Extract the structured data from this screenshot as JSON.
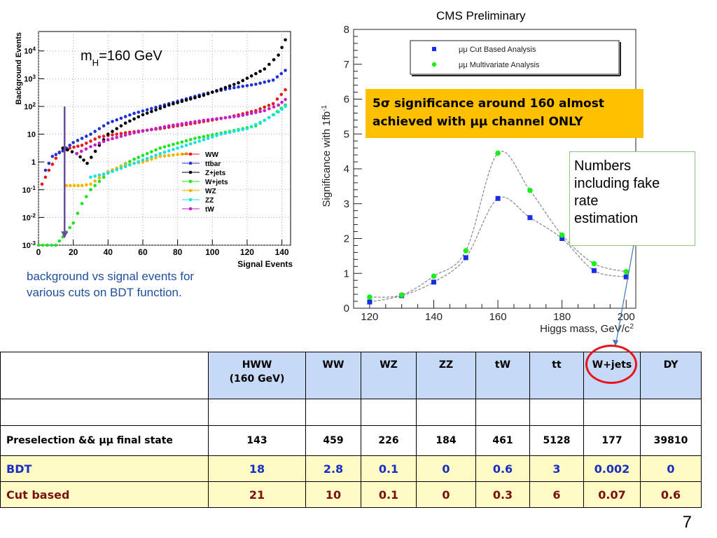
{
  "left_chart_data": {
    "type": "scatter",
    "annotation_main": "m",
    "annotation_sub": "H",
    "annotation_rest": "=160 GeV",
    "xlabel": "Signal Events",
    "ylabel": "Background Events",
    "xlim": [
      0,
      145
    ],
    "ylim_log10": [
      -3,
      4.7
    ],
    "xticks": [
      "0",
      "20",
      "40",
      "60",
      "80",
      "100",
      "120",
      "140"
    ],
    "yticks": [
      {
        "exp": -3,
        "base": "10",
        "sup": "-3"
      },
      {
        "exp": -2,
        "base": "10",
        "sup": "-2"
      },
      {
        "exp": -1,
        "base": "10",
        "sup": "-1"
      },
      {
        "exp": 0,
        "base": "1",
        "sup": ""
      },
      {
        "exp": 1,
        "base": "10",
        "sup": ""
      },
      {
        "exp": 2,
        "base": "10",
        "sup": "2"
      },
      {
        "exp": 3,
        "base": "10",
        "sup": "3"
      },
      {
        "exp": 4,
        "base": "10",
        "sup": "4"
      }
    ],
    "cut_arrow_x": 15,
    "series": [
      {
        "name": "WW",
        "color": "#e41a1c",
        "points": [
          [
            2,
            -0.8
          ],
          [
            6,
            -0.3
          ],
          [
            12,
            0.35
          ],
          [
            18,
            0.5
          ],
          [
            25,
            0.6
          ],
          [
            35,
            0.9
          ],
          [
            50,
            1.05
          ],
          [
            70,
            1.2
          ],
          [
            90,
            1.4
          ],
          [
            110,
            1.62
          ],
          [
            125,
            1.85
          ],
          [
            135,
            2.1
          ],
          [
            142,
            2.6
          ]
        ]
      },
      {
        "name": "ttbar",
        "color": "#1f32d6",
        "points": [
          [
            4,
            -0.3
          ],
          [
            8,
            0.2
          ],
          [
            14,
            0.4
          ],
          [
            20,
            0.7
          ],
          [
            30,
            1.0
          ],
          [
            40,
            1.4
          ],
          [
            55,
            1.75
          ],
          [
            75,
            2.1
          ],
          [
            95,
            2.45
          ],
          [
            110,
            2.65
          ],
          [
            125,
            2.8
          ],
          [
            135,
            2.95
          ],
          [
            142,
            3.3
          ]
        ]
      },
      {
        "name": "Z+jets",
        "color": "#000000",
        "points": [
          [
            14,
            0.5
          ],
          [
            22,
            0.3
          ],
          [
            28,
            -0.05
          ],
          [
            35,
            0.6
          ],
          [
            40,
            1.0
          ],
          [
            50,
            1.4
          ],
          [
            60,
            1.7
          ],
          [
            75,
            2.05
          ],
          [
            95,
            2.4
          ],
          [
            115,
            2.85
          ],
          [
            130,
            3.35
          ],
          [
            138,
            3.85
          ],
          [
            142,
            4.4
          ]
        ]
      },
      {
        "name": "W+jets",
        "color": "#19e61a",
        "points": [
          [
            0,
            -3
          ],
          [
            10,
            -3
          ],
          [
            14,
            -2.7
          ],
          [
            20,
            -2.2
          ],
          [
            25,
            -1.5
          ],
          [
            30,
            -1.0
          ],
          [
            40,
            -0.4
          ],
          [
            55,
            0.1
          ],
          [
            70,
            0.5
          ],
          [
            90,
            0.85
          ],
          [
            110,
            1.1
          ],
          [
            125,
            1.3
          ],
          [
            135,
            1.7
          ],
          [
            142,
            2.05
          ]
        ]
      },
      {
        "name": "WZ",
        "color": "#f5b400",
        "points": [
          [
            16,
            -0.85
          ],
          [
            25,
            -0.85
          ],
          [
            30,
            -0.8
          ],
          [
            40,
            -0.35
          ],
          [
            50,
            -0.1
          ],
          [
            60,
            0.0
          ],
          [
            70,
            0.2
          ],
          [
            85,
            0.3
          ]
        ]
      },
      {
        "name": "ZZ",
        "color": "#19e1e1",
        "points": [
          [
            30,
            -0.55
          ],
          [
            40,
            -0.4
          ],
          [
            55,
            -0.05
          ],
          [
            70,
            0.3
          ],
          [
            90,
            0.7
          ],
          [
            105,
            1.0
          ],
          [
            120,
            1.2
          ],
          [
            130,
            1.5
          ],
          [
            138,
            1.8
          ],
          [
            142,
            2.0
          ]
        ]
      },
      {
        "name": "tW",
        "color": "#c41ec8",
        "points": [
          [
            22,
            0.3
          ],
          [
            30,
            0.55
          ],
          [
            40,
            0.8
          ],
          [
            55,
            1.05
          ],
          [
            75,
            1.3
          ],
          [
            95,
            1.5
          ],
          [
            115,
            1.65
          ],
          [
            130,
            1.85
          ],
          [
            138,
            2.05
          ],
          [
            142,
            2.25
          ]
        ]
      }
    ]
  },
  "right_chart_data": {
    "type": "line",
    "title": "CMS Preliminary",
    "xlabel": "Higgs mass, GeV/c",
    "xlabel_sup": "2",
    "ylabel": "Significance with  1fb",
    "ylabel_sup": "-1",
    "xlim": [
      115,
      203
    ],
    "ylim": [
      0,
      8
    ],
    "xticks": [
      "120",
      "140",
      "160",
      "180",
      "200"
    ],
    "yticks": [
      "0",
      "1",
      "2",
      "3",
      "4",
      "5",
      "6",
      "7",
      "8"
    ],
    "series": [
      {
        "name": "μμ Cut Based Analysis",
        "color": "#1a2ee8",
        "marker": "square",
        "x": [
          120,
          130,
          140,
          150,
          160,
          170,
          180,
          190,
          200
        ],
        "values": [
          0.18,
          0.36,
          0.75,
          1.45,
          3.15,
          2.6,
          2.0,
          1.08,
          0.9
        ]
      },
      {
        "name": "μμ Multivariate Analysis",
        "color": "#19f01a",
        "marker": "circle",
        "x": [
          120,
          130,
          140,
          150,
          160,
          170,
          180,
          190,
          200
        ],
        "values": [
          0.32,
          0.38,
          0.92,
          1.65,
          4.45,
          3.38,
          2.1,
          1.28,
          1.05
        ]
      }
    ]
  },
  "left_caption": "background vs signal events for various cuts on BDT function.",
  "highlight": {
    "line1": "5σ significance  around 160  almost",
    "line2": "achieved with μμ channel ONLY"
  },
  "note": {
    "line1": "Numbers",
    "line2": "including fake",
    "line3": "rate",
    "line4": "estimation"
  },
  "table": {
    "headers": [
      {
        "line1": "HWW",
        "line2": "(160 GeV)"
      },
      {
        "line1": "WW",
        "line2": ""
      },
      {
        "line1": "WZ",
        "line2": ""
      },
      {
        "line1": "ZZ",
        "line2": ""
      },
      {
        "line1": "tW",
        "line2": ""
      },
      {
        "line1": "tt",
        "line2": ""
      },
      {
        "line1": "W+jets",
        "line2": ""
      },
      {
        "line1": "DY",
        "line2": ""
      }
    ],
    "rows": [
      {
        "label": "Preselection && μμ final state",
        "values": [
          "143",
          "459",
          "226",
          "184",
          "461",
          "5128",
          "177",
          "39810"
        ]
      },
      {
        "label": "BDT",
        "values": [
          "18",
          "2.8",
          "0.1",
          "0",
          "0.6",
          "3",
          "0.002",
          "0"
        ]
      },
      {
        "label": "Cut based",
        "values": [
          "21",
          "10",
          "0.1",
          "0",
          "0.3",
          "6",
          "0.07",
          "0.6"
        ]
      }
    ]
  },
  "page_number": "7",
  "colors": {
    "highlight_bg": "#ffc000",
    "header_bg": "#c6d9f7",
    "result_bg": "#fefcc4",
    "ring": "#e8141c"
  }
}
